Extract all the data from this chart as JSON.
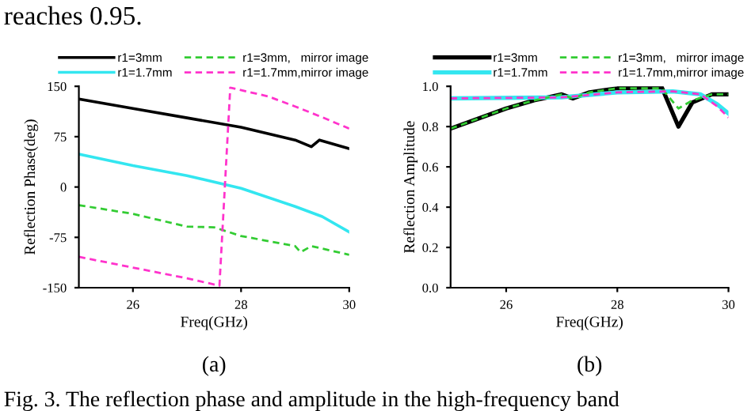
{
  "chart_data": [
    {
      "type": "line",
      "xlabel": "Freq(GHz)",
      "ylabel": "Reflection Phase(deg)",
      "xlim": [
        25,
        30
      ],
      "xticks": [
        26,
        28,
        30
      ],
      "ylim": [
        -150,
        150
      ],
      "yticks": [
        -150,
        -75,
        0,
        75,
        150
      ],
      "legend": "top",
      "grid": false,
      "marker": "none",
      "annotations": [
        "reaches 0.95.",
        "(a)",
        "Fig. 3. The reflection phase and amplitude in the high-frequency band"
      ],
      "series": [
        {
          "name": "r1=3mm",
          "color": "#000000",
          "line_style": "solid",
          "x": [
            25,
            26,
            27,
            28,
            29,
            29.3,
            29.45,
            30
          ],
          "values": [
            131,
            117,
            103,
            89,
            70,
            60,
            70,
            57
          ]
        },
        {
          "name": "r1=1.7mm",
          "color": "#33e6f0",
          "line_style": "solid",
          "x": [
            25,
            26,
            27,
            28,
            29,
            29.5,
            30
          ],
          "values": [
            49,
            32,
            17,
            -2,
            -29,
            -44,
            -67
          ]
        },
        {
          "name": "r1=3mm,   mirror image",
          "color": "#33cc33",
          "line_style": "dashed",
          "x": [
            25,
            26,
            27,
            27.5,
            28,
            29,
            29.1,
            29.3,
            30
          ],
          "values": [
            -27,
            -40,
            -59,
            -60,
            -73,
            -88,
            -97,
            -88,
            -101
          ]
        },
        {
          "name": "r1=1.7mm,mirror image",
          "color": "#ff33cc",
          "line_style": "dashed",
          "x": [
            25,
            26,
            27,
            27.6,
            27.8,
            28.5,
            29,
            29.5,
            30
          ],
          "values": [
            -104,
            -120,
            -136,
            -147,
            148,
            135,
            120,
            104,
            87
          ]
        }
      ]
    },
    {
      "type": "line",
      "xlabel": "Freq(GHz)",
      "ylabel": "Reflection Amplitude",
      "xlim": [
        25,
        30
      ],
      "xticks": [
        26,
        28,
        30
      ],
      "ylim": [
        0,
        1.0
      ],
      "yticks": [
        {
          "value": 0,
          "label": "0.0"
        },
        0.2,
        0.4,
        0.6,
        0.8,
        {
          "value": 1,
          "label": "1.0"
        }
      ],
      "legend": "top",
      "grid": false,
      "marker": "none",
      "annotations": [
        "(b)"
      ],
      "series": [
        {
          "name": "r1=3mm",
          "color": "#000000",
          "line_style": "solid",
          "x": [
            25,
            25.5,
            26,
            26.5,
            27,
            27.2,
            27.5,
            28,
            28.8,
            29.1,
            29.35,
            29.7,
            30
          ],
          "values": [
            0.79,
            0.84,
            0.89,
            0.93,
            0.96,
            0.94,
            0.97,
            0.99,
            0.995,
            0.8,
            0.92,
            0.96,
            0.96
          ]
        },
        {
          "name": "r1=1.7mm",
          "color": "#33e6f0",
          "line_style": "solid",
          "x": [
            25,
            27,
            28,
            29,
            29.5,
            29.8,
            30
          ],
          "values": [
            0.94,
            0.945,
            0.97,
            0.975,
            0.96,
            0.91,
            0.865
          ]
        },
        {
          "name": "r1=3mm,   mirror image",
          "color": "#33cc33",
          "line_style": "dashed",
          "x": [
            25,
            25.5,
            26,
            26.5,
            27,
            27.2,
            27.5,
            28,
            28.8,
            29.1,
            29.35,
            29.7,
            30
          ],
          "values": [
            0.79,
            0.84,
            0.89,
            0.93,
            0.96,
            0.94,
            0.97,
            0.99,
            0.99,
            0.89,
            0.93,
            0.96,
            0.96
          ]
        },
        {
          "name": "r1=1.7mm,mirror image",
          "color": "#ff33cc",
          "line_style": "dashed",
          "x": [
            25,
            27,
            28,
            29,
            29.5,
            29.8,
            30
          ],
          "values": [
            0.94,
            0.945,
            0.97,
            0.975,
            0.96,
            0.9,
            0.845
          ]
        }
      ]
    }
  ]
}
